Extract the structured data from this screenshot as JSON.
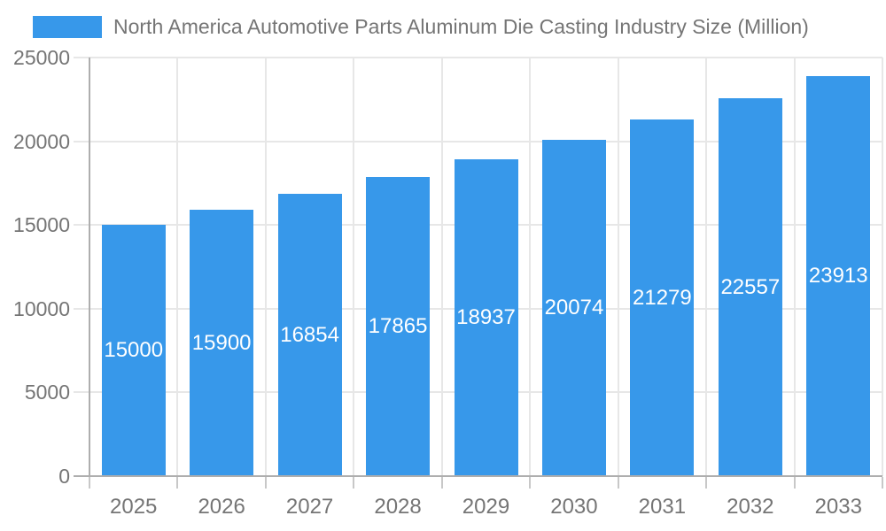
{
  "legend": {
    "label": "North America Automotive Parts Aluminum Die Casting Industry Size (Million)"
  },
  "chart_data": {
    "type": "bar",
    "title": "North America Automotive Parts Aluminum Die Casting Industry Size (Million)",
    "categories": [
      "2025",
      "2026",
      "2027",
      "2028",
      "2029",
      "2030",
      "2031",
      "2032",
      "2033"
    ],
    "values": [
      15000,
      15900,
      16854,
      17865,
      18937,
      20074,
      21279,
      22557,
      23913
    ],
    "series_name": "North America Automotive Parts Aluminum Die Casting Industry Size (Million)",
    "xlabel": "",
    "ylabel": "",
    "ylim": [
      0,
      25000
    ],
    "yticks": [
      0,
      5000,
      10000,
      15000,
      20000,
      25000
    ],
    "grid": true,
    "legend_position": "top-left",
    "value_labels_shown": true,
    "value_labels_position": "center-of-bar"
  },
  "colors": {
    "bar": "#3798EA",
    "text": "#757575",
    "value_label": "#FFFFFF",
    "grid": "#E7E7E7",
    "axis": "#AEAEAE",
    "tick": "#C8C8C8",
    "background": "#FFFFFF"
  }
}
